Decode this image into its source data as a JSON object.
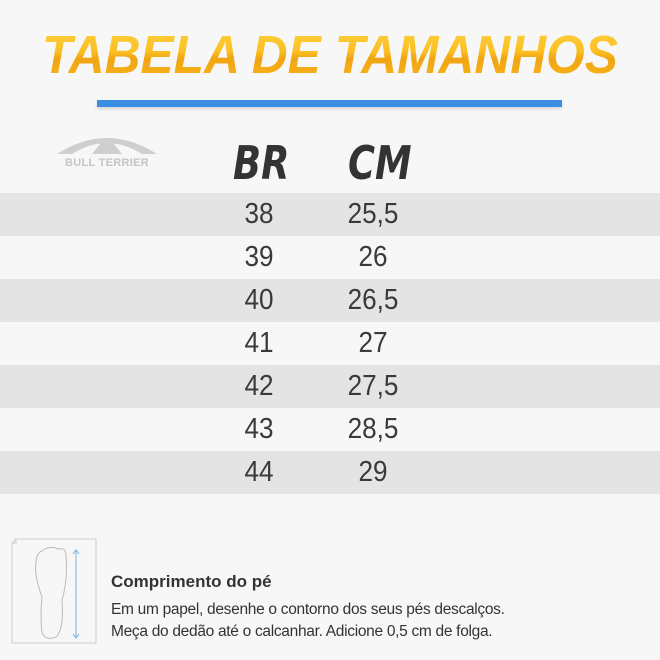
{
  "title": "TABELA DE TAMANHOS",
  "brand": {
    "logo_text": "BULL TERRIER"
  },
  "colors": {
    "title": "#f5b01c",
    "divider": "#3a8fe4",
    "row_shade": "#e4e4e4"
  },
  "table": {
    "headers": [
      "BR",
      "CM"
    ],
    "rows": [
      [
        "38",
        "25,5"
      ],
      [
        "39",
        "26"
      ],
      [
        "40",
        "26,5"
      ],
      [
        "41",
        "27"
      ],
      [
        "42",
        "27,5"
      ],
      [
        "43",
        "28,5"
      ],
      [
        "44",
        "29"
      ]
    ]
  },
  "instructions": {
    "icon": "foot-measure-icon",
    "title": "Comprimento do pé",
    "lines": [
      "Em um papel, desenhe o contorno dos seus pés descalços.",
      "Meça do dedão até o calcanhar. Adicione 0,5 cm de folga."
    ]
  }
}
